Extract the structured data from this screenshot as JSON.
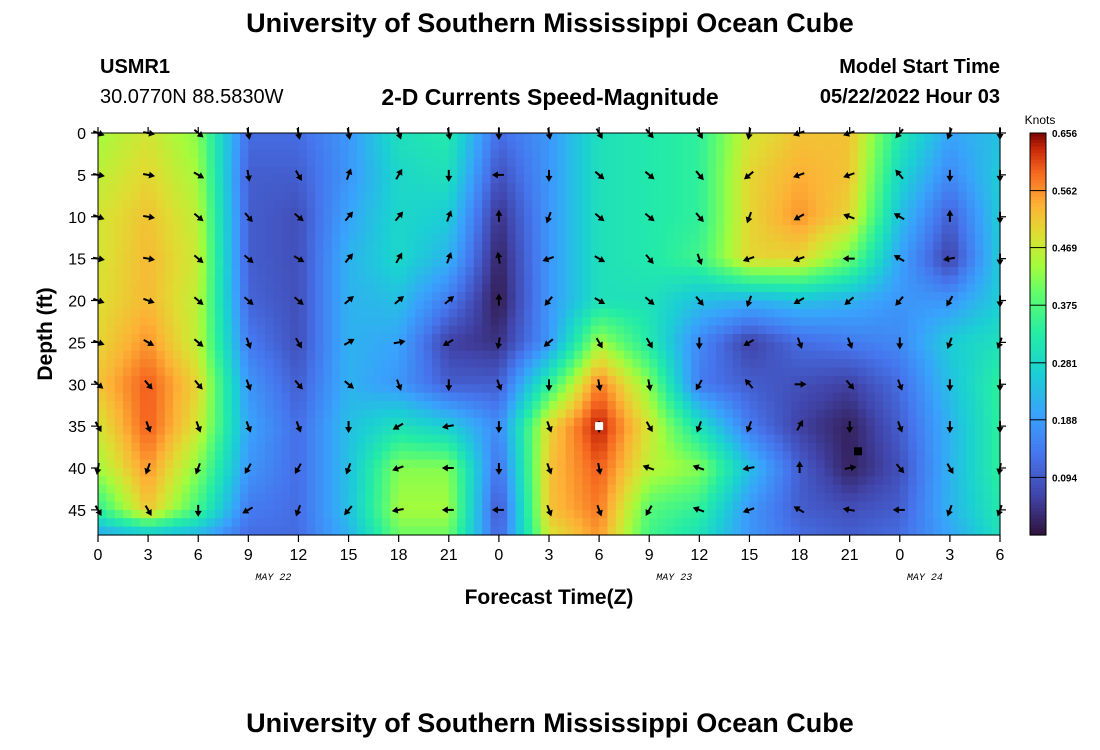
{
  "header": {
    "title": "University of Southern Mississippi Ocean Cube",
    "station_id": "USMR1",
    "station_coords": "30.0770N  88.5830W",
    "subtitle": "2-D Currents Speed-Magnitude",
    "model_start_label": "Model Start Time",
    "model_start_value": "05/22/2022 Hour 03"
  },
  "footer": {
    "title": "University of Southern Mississippi Ocean Cube"
  },
  "chart_data": {
    "type": "heatmap",
    "title": "2-D Currents Speed-Magnitude",
    "xlabel": "Forecast Time(Z)",
    "ylabel": "Depth (ft)",
    "x_ticks": [
      "0",
      "3",
      "6",
      "9",
      "12",
      "15",
      "18",
      "21",
      "0",
      "3",
      "6",
      "9",
      "12",
      "15",
      "18",
      "21",
      "0",
      "3",
      "6"
    ],
    "date_labels": [
      {
        "label": "MAY 22",
        "tick_index": 3.5
      },
      {
        "label": "MAY 23",
        "tick_index": 11.5
      },
      {
        "label": "MAY 24",
        "tick_index": 16.5
      }
    ],
    "y_ticks": [
      0,
      5,
      10,
      15,
      20,
      25,
      30,
      35,
      40,
      45
    ],
    "ylim": [
      0,
      48
    ],
    "x_range_hours": [
      0,
      54
    ],
    "colorbar": {
      "label": "Knots",
      "ticks": [
        "0.656",
        "0.562",
        "0.469",
        "0.375",
        "0.281",
        "0.188",
        "0.094"
      ],
      "range": [
        0,
        0.656
      ]
    },
    "speed_grid": {
      "x_hours": [
        0,
        3,
        6,
        9,
        12,
        15,
        18,
        21,
        24,
        27,
        30,
        33,
        36,
        39,
        42,
        45,
        48,
        51,
        54
      ],
      "depths": [
        0,
        5,
        10,
        15,
        20,
        25,
        30,
        35,
        40,
        45,
        48
      ],
      "values": [
        [
          0.44,
          0.48,
          0.42,
          0.12,
          0.12,
          0.18,
          0.3,
          0.32,
          0.12,
          0.18,
          0.3,
          0.32,
          0.34,
          0.48,
          0.52,
          0.52,
          0.32,
          0.2,
          0.24
        ],
        [
          0.46,
          0.5,
          0.44,
          0.1,
          0.1,
          0.18,
          0.28,
          0.3,
          0.08,
          0.18,
          0.3,
          0.32,
          0.34,
          0.5,
          0.54,
          0.52,
          0.28,
          0.16,
          0.26
        ],
        [
          0.48,
          0.52,
          0.46,
          0.1,
          0.08,
          0.2,
          0.28,
          0.26,
          0.04,
          0.18,
          0.3,
          0.32,
          0.34,
          0.5,
          0.56,
          0.5,
          0.24,
          0.1,
          0.26
        ],
        [
          0.48,
          0.53,
          0.47,
          0.1,
          0.08,
          0.22,
          0.28,
          0.22,
          0.02,
          0.18,
          0.3,
          0.32,
          0.36,
          0.5,
          0.5,
          0.4,
          0.2,
          0.06,
          0.26
        ],
        [
          0.49,
          0.53,
          0.46,
          0.11,
          0.08,
          0.22,
          0.24,
          0.14,
          0.01,
          0.18,
          0.3,
          0.3,
          0.24,
          0.22,
          0.24,
          0.22,
          0.18,
          0.18,
          0.26
        ],
        [
          0.5,
          0.56,
          0.46,
          0.14,
          0.08,
          0.22,
          0.2,
          0.06,
          0.04,
          0.18,
          0.44,
          0.32,
          0.16,
          0.06,
          0.12,
          0.14,
          0.16,
          0.26,
          0.3
        ],
        [
          0.52,
          0.6,
          0.5,
          0.18,
          0.1,
          0.22,
          0.18,
          0.1,
          0.1,
          0.34,
          0.58,
          0.42,
          0.14,
          0.1,
          0.08,
          0.06,
          0.12,
          0.24,
          0.34
        ],
        [
          0.48,
          0.6,
          0.48,
          0.2,
          0.12,
          0.24,
          0.3,
          0.26,
          0.16,
          0.5,
          0.64,
          0.48,
          0.3,
          0.14,
          0.06,
          0.02,
          0.1,
          0.22,
          0.34
        ],
        [
          0.44,
          0.56,
          0.42,
          0.18,
          0.12,
          0.24,
          0.42,
          0.42,
          0.12,
          0.52,
          0.6,
          0.46,
          0.42,
          0.24,
          0.1,
          0.02,
          0.08,
          0.22,
          0.34
        ],
        [
          0.34,
          0.52,
          0.36,
          0.14,
          0.12,
          0.24,
          0.44,
          0.44,
          0.08,
          0.52,
          0.58,
          0.38,
          0.34,
          0.18,
          0.1,
          0.08,
          0.1,
          0.22,
          0.32
        ],
        [
          0.2,
          0.24,
          0.22,
          0.12,
          0.12,
          0.22,
          0.4,
          0.4,
          0.1,
          0.48,
          0.56,
          0.36,
          0.3,
          0.18,
          0.12,
          0.1,
          0.12,
          0.2,
          0.3
        ]
      ]
    },
    "arrows": {
      "x_hours": [
        0,
        3,
        6,
        9,
        12,
        15,
        18,
        21,
        24,
        27,
        30,
        33,
        36,
        39,
        42,
        45,
        48,
        51,
        54
      ],
      "depths": [
        0,
        5,
        10,
        15,
        20,
        25,
        30,
        35,
        40,
        45
      ],
      "directions_deg": [
        [
          110,
          100,
          130,
          170,
          170,
          170,
          160,
          170,
          180,
          170,
          150,
          140,
          150,
          190,
          250,
          250,
          220,
          200,
          180
        ],
        [
          100,
          100,
          120,
          170,
          150,
          20,
          30,
          180,
          270,
          180,
          130,
          130,
          140,
          230,
          250,
          250,
          320,
          180,
          180
        ],
        [
          110,
          100,
          130,
          140,
          130,
          40,
          40,
          20,
          0,
          200,
          130,
          130,
          140,
          200,
          240,
          290,
          300,
          0,
          180
        ],
        [
          100,
          100,
          130,
          130,
          120,
          40,
          30,
          20,
          350,
          250,
          120,
          140,
          160,
          250,
          250,
          270,
          300,
          260,
          180
        ],
        [
          110,
          110,
          130,
          130,
          130,
          50,
          50,
          50,
          0,
          220,
          120,
          130,
          140,
          200,
          240,
          230,
          220,
          210,
          180
        ],
        [
          110,
          120,
          130,
          160,
          150,
          60,
          80,
          240,
          190,
          230,
          150,
          150,
          180,
          240,
          160,
          160,
          180,
          200,
          200
        ],
        [
          130,
          140,
          140,
          160,
          140,
          130,
          160,
          180,
          160,
          180,
          170,
          170,
          210,
          320,
          90,
          140,
          160,
          180,
          180
        ],
        [
          150,
          160,
          160,
          160,
          160,
          180,
          240,
          260,
          180,
          160,
          180,
          150,
          200,
          200,
          30,
          180,
          160,
          180,
          180
        ],
        [
          190,
          200,
          200,
          210,
          210,
          200,
          250,
          270,
          180,
          160,
          170,
          290,
          290,
          260,
          0,
          80,
          140,
          150,
          190
        ],
        [
          150,
          150,
          180,
          240,
          200,
          220,
          260,
          270,
          270,
          160,
          160,
          210,
          290,
          250,
          300,
          280,
          270,
          200,
          200
        ]
      ]
    },
    "markers": [
      {
        "hour": 30,
        "depth": 35.0,
        "color": "#ffffff"
      },
      {
        "hour": 45.5,
        "depth": 38.0,
        "color": "#000000"
      }
    ]
  }
}
